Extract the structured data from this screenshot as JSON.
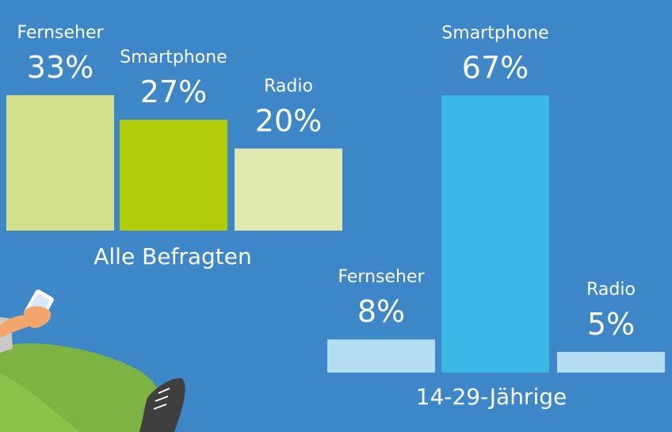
{
  "background_color": "#3d86c8",
  "chart_data": [
    {
      "type": "bar",
      "xlabel": "Alle Befragten",
      "categories": [
        "Fernseher",
        "Smartphone",
        "Radio"
      ],
      "values": [
        33,
        27,
        20
      ],
      "value_labels": [
        "33%",
        "27%",
        "20%"
      ],
      "unit": "%",
      "colors": [
        "#d3e08b",
        "#b3cc09",
        "#e0eab0"
      ]
    },
    {
      "type": "bar",
      "xlabel": "14-29-Jährige",
      "categories": [
        "Fernseher",
        "Smartphone",
        "Radio"
      ],
      "values": [
        8,
        67,
        5
      ],
      "value_labels": [
        "8%",
        "67%",
        "5%"
      ],
      "unit": "%",
      "colors": [
        "#b4dcf3",
        "#3bb8e8",
        "#b4dcf3"
      ]
    }
  ],
  "illustration": {
    "name": "person-with-smartphone",
    "colors": {
      "skin": "#f2a66b",
      "pants": "#7cb342",
      "shirt": "#c9c9c9",
      "shoe": "#3f3f3f",
      "phone": "#ffffff"
    }
  }
}
